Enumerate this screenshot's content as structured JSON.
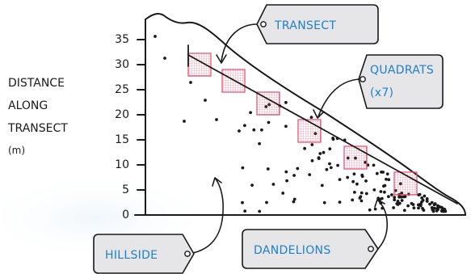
{
  "y_axis": {
    "label_lines": [
      "DISTANCE",
      "ALONG",
      "TRANSECT",
      "(m)"
    ],
    "ticks": [
      "0",
      "5",
      "10",
      "15",
      "20",
      "25",
      "30",
      "35"
    ]
  },
  "labels": {
    "transect": "TRANSECT",
    "quadrats_line1": "QUADRATS",
    "quadrats_line2": "(x7)",
    "hillside": "HILLSIDE",
    "dandelions": "DANDELIONS"
  },
  "colors": {
    "ink": "#1a1a1a",
    "tag_fill": "#e6e6e8",
    "tag_text": "#1f7fc9",
    "quadrat": "#e8476a",
    "transect_line": "#c8364f"
  }
}
